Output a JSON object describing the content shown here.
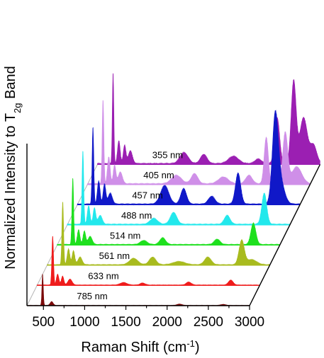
{
  "chart_data": {
    "type": "area",
    "layout": "3d-waterfall",
    "xlabel": "Raman Shift (cm",
    "xlabel_sup": "-1",
    "xlabel_tail": ")",
    "ylabel": "Normalized Intensity to T",
    "ylabel_sub": "2g",
    "ylabel_tail": " Band",
    "x_ticks": [
      "500",
      "1000",
      "1500",
      "2000",
      "2500",
      "3000"
    ],
    "xlim": [
      300,
      3000
    ],
    "series": [
      {
        "name": "785 nm",
        "color": "#7b0a0a",
        "peaks": [
          [
            490,
            1.0,
            8
          ],
          [
            600,
            0.12,
            18
          ],
          [
            2150,
            0.04,
            30
          ],
          [
            2680,
            0.03,
            30
          ]
        ]
      },
      {
        "name": "633 nm",
        "color": "#ef1c1c",
        "peaks": [
          [
            490,
            1.0,
            10
          ],
          [
            550,
            0.22,
            15
          ],
          [
            610,
            0.18,
            15
          ],
          [
            700,
            0.12,
            25
          ],
          [
            1350,
            0.05,
            40
          ],
          [
            1580,
            0.04,
            30
          ],
          [
            2140,
            0.06,
            30
          ],
          [
            2650,
            0.1,
            28
          ]
        ]
      },
      {
        "name": "561 nm",
        "color": "#a8bb1e",
        "peaks": [
          [
            490,
            1.0,
            10
          ],
          [
            560,
            0.25,
            16
          ],
          [
            620,
            0.22,
            16
          ],
          [
            700,
            0.12,
            25
          ],
          [
            1350,
            0.1,
            50
          ],
          [
            1580,
            0.12,
            40
          ],
          [
            1900,
            0.05,
            70
          ],
          [
            2250,
            0.12,
            40
          ],
          [
            2660,
            0.38,
            32
          ],
          [
            2780,
            0.08,
            60
          ]
        ]
      },
      {
        "name": "514 nm",
        "color": "#1ee01e",
        "peaks": [
          [
            490,
            1.0,
            10
          ],
          [
            560,
            0.22,
            16
          ],
          [
            630,
            0.2,
            16
          ],
          [
            700,
            0.12,
            25
          ],
          [
            1350,
            0.06,
            40
          ],
          [
            1580,
            0.1,
            35
          ],
          [
            2240,
            0.08,
            35
          ],
          [
            2680,
            0.32,
            30
          ]
        ]
      },
      {
        "name": "488 nm",
        "color": "#22e8ec",
        "peaks": [
          [
            490,
            1.0,
            10
          ],
          [
            560,
            0.25,
            16
          ],
          [
            630,
            0.22,
            16
          ],
          [
            700,
            0.12,
            25
          ],
          [
            1350,
            0.08,
            45
          ],
          [
            1590,
            0.16,
            40
          ],
          [
            2240,
            0.12,
            35
          ],
          [
            2690,
            0.42,
            30
          ]
        ]
      },
      {
        "name": "457 nm",
        "color": "#1018c8",
        "peaks": [
          [
            490,
            1.0,
            10
          ],
          [
            560,
            0.3,
            16
          ],
          [
            630,
            0.26,
            16
          ],
          [
            700,
            0.14,
            25
          ],
          [
            1360,
            0.24,
            50
          ],
          [
            1590,
            0.2,
            35
          ],
          [
            1930,
            0.1,
            40
          ],
          [
            2250,
            0.4,
            32
          ],
          [
            2700,
            1.05,
            35
          ],
          [
            2760,
            0.3,
            50
          ]
        ]
      },
      {
        "name": "405 nm",
        "color": "#cf8fe8",
        "peaks": [
          [
            490,
            1.0,
            10
          ],
          [
            560,
            0.32,
            16
          ],
          [
            630,
            0.22,
            16
          ],
          [
            700,
            0.14,
            25
          ],
          [
            1380,
            0.1,
            60
          ],
          [
            1600,
            0.12,
            40
          ],
          [
            1950,
            0.08,
            60
          ],
          [
            2260,
            0.1,
            40
          ],
          [
            2470,
            0.55,
            25
          ],
          [
            2700,
            0.6,
            30
          ],
          [
            2840,
            0.2,
            60
          ]
        ]
      },
      {
        "name": "355 nm",
        "color": "#9b1fb2",
        "peaks": [
          [
            490,
            1.0,
            9
          ],
          [
            560,
            0.25,
            16
          ],
          [
            630,
            0.2,
            16
          ],
          [
            700,
            0.14,
            25
          ],
          [
            1350,
            0.12,
            50
          ],
          [
            1590,
            0.1,
            40
          ],
          [
            1950,
            0.08,
            60
          ],
          [
            2250,
            0.05,
            40
          ],
          [
            2480,
            0.5,
            30
          ],
          [
            2680,
            0.9,
            30
          ],
          [
            2800,
            0.5,
            45
          ],
          [
            2920,
            0.2,
            40
          ]
        ]
      }
    ],
    "grid": false,
    "legend": "none (series labelled inline)"
  }
}
